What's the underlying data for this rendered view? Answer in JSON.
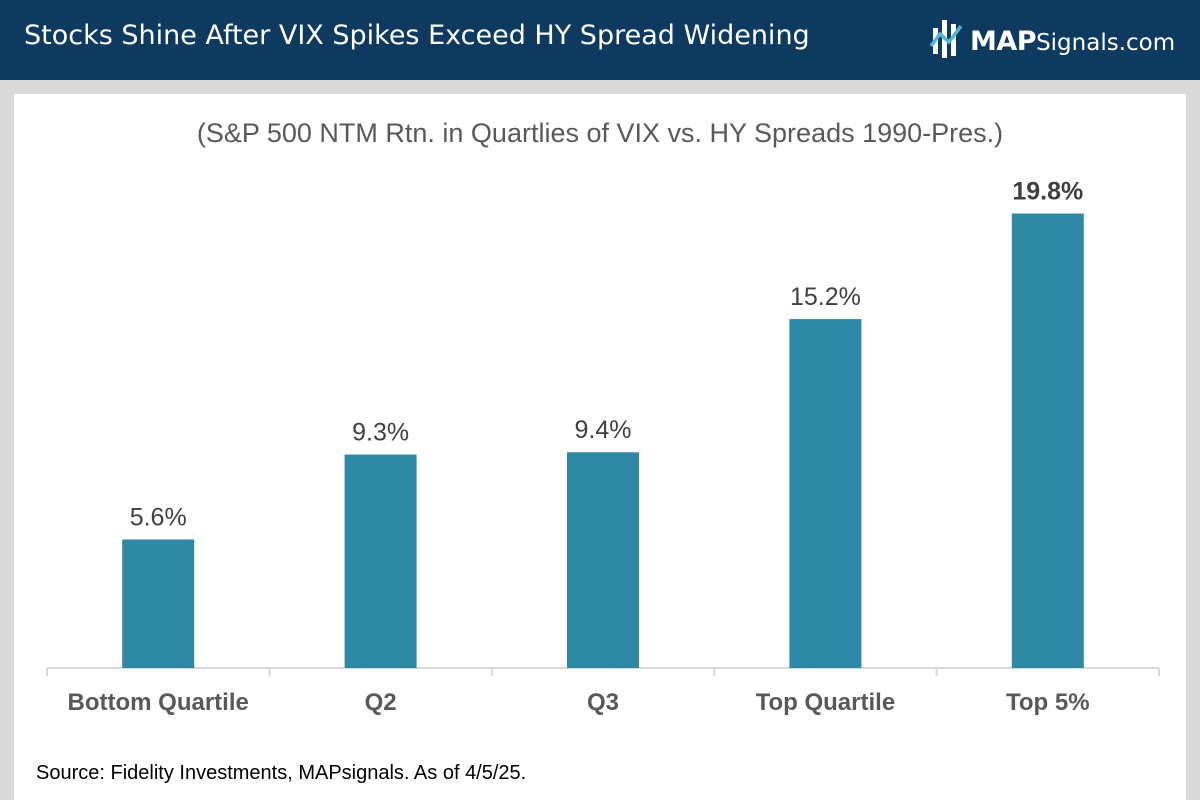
{
  "header": {
    "title": "Stocks Shine After VIX Spikes Exceed HY Spread Widening",
    "logo_bold": "MAP",
    "logo_rest": "Signals.com"
  },
  "chart_data": {
    "type": "bar",
    "title": "(S&P 500 NTM Rtn. in Quartlies of VIX vs. HY Spreads 1990-Pres.)",
    "categories": [
      "Bottom Quartile",
      "Q2",
      "Q3",
      "Top Quartile",
      "Top 5%"
    ],
    "values": [
      5.6,
      9.3,
      9.4,
      15.2,
      19.8
    ],
    "data_labels": [
      "5.6%",
      "9.3%",
      "9.4%",
      "15.2%",
      "19.8%"
    ],
    "highlight_last_label": true,
    "ylim": [
      0,
      21
    ],
    "grid": false,
    "bar_color": "#2e88a6",
    "axis_color": "#d9d9d9",
    "label_color": "#404040"
  },
  "source": "Source: Fidelity Investments, MAPsignals. As of 4/5/25."
}
